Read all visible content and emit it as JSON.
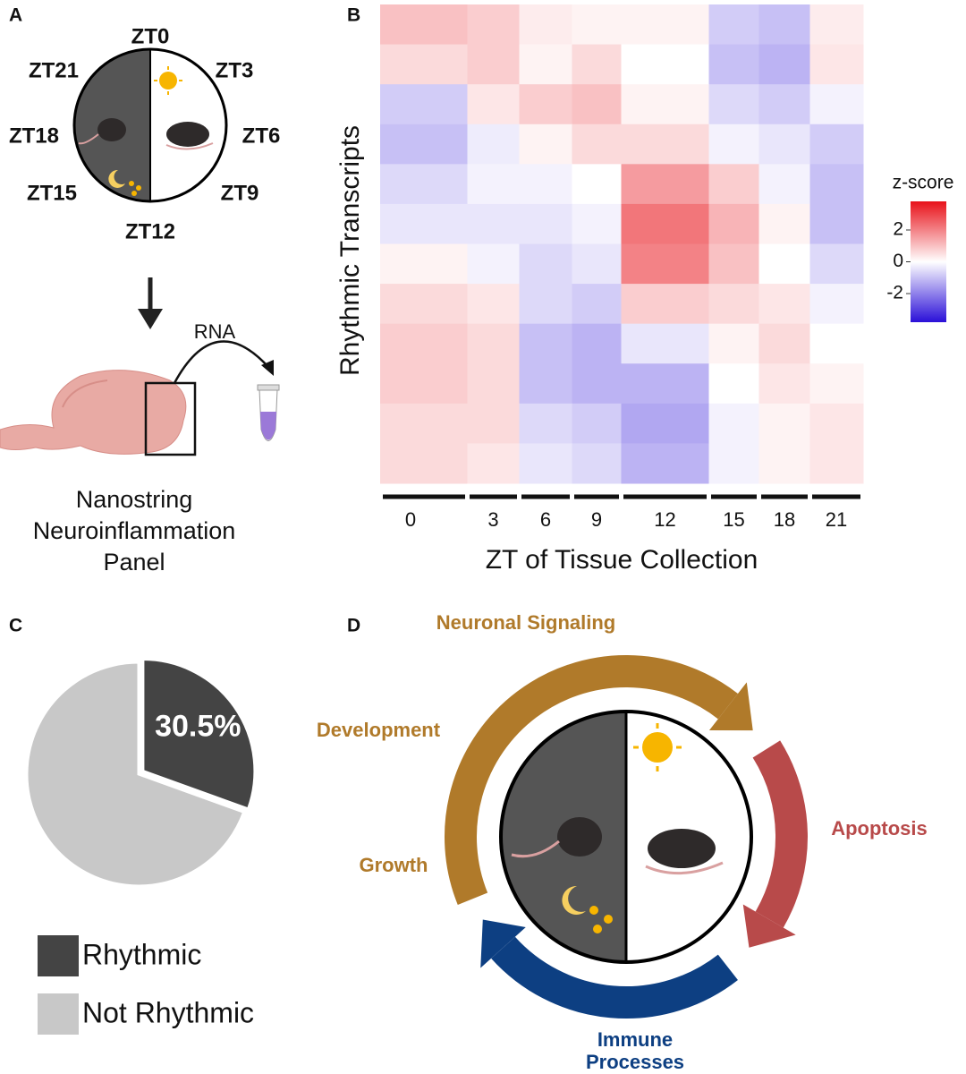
{
  "panel_a": {
    "letter": "A",
    "clock_labels": [
      "ZT0",
      "ZT3",
      "ZT6",
      "ZT9",
      "ZT12",
      "ZT15",
      "ZT18",
      "ZT21"
    ],
    "rna_label": "RNA",
    "caption": [
      "Nanostring",
      "Neuroinflammation",
      "Panel"
    ]
  },
  "chart_data": [
    {
      "type": "heatmap",
      "letter": "B",
      "x_label": "ZT of Tissue Collection",
      "y_label": "Rhythmic Transcripts",
      "categories": [
        "0",
        "3",
        "6",
        "9",
        "12",
        "15",
        "18",
        "21"
      ],
      "values": [
        [
          1.0,
          0.8,
          0.3,
          0.2,
          0.2,
          -0.8,
          -1.0,
          0.3
        ],
        [
          0.6,
          0.8,
          0.2,
          0.6,
          0.0,
          -1.0,
          -1.2,
          0.4
        ],
        [
          -0.8,
          0.4,
          0.8,
          1.0,
          0.2,
          -0.6,
          -0.8,
          -0.2
        ],
        [
          -1.0,
          -0.3,
          0.2,
          0.6,
          0.6,
          -0.2,
          -0.4,
          -0.8
        ],
        [
          -0.6,
          -0.2,
          -0.2,
          0.0,
          1.6,
          0.8,
          -0.2,
          -1.0
        ],
        [
          -0.4,
          -0.4,
          -0.4,
          -0.2,
          2.2,
          1.2,
          0.2,
          -1.0
        ],
        [
          0.2,
          -0.2,
          -0.6,
          -0.4,
          2.0,
          1.0,
          0.0,
          -0.6
        ],
        [
          0.6,
          0.4,
          -0.6,
          -0.8,
          0.8,
          0.6,
          0.4,
          -0.2
        ],
        [
          0.8,
          0.6,
          -1.0,
          -1.2,
          -0.4,
          0.2,
          0.6,
          0.0
        ],
        [
          0.8,
          0.6,
          -1.0,
          -1.2,
          -1.2,
          0.0,
          0.4,
          0.2
        ],
        [
          0.6,
          0.6,
          -0.6,
          -0.8,
          -1.4,
          -0.2,
          0.2,
          0.4
        ],
        [
          0.6,
          0.4,
          -0.4,
          -0.6,
          -1.2,
          -0.2,
          0.2,
          0.4
        ]
      ],
      "colorbar_title": "z-score",
      "zlim": [
        -3.8,
        3.8
      ],
      "zticks": [
        2,
        0,
        -2
      ],
      "colors": [
        "#2a0fd8",
        "#ffffff",
        "#e8121a"
      ]
    },
    {
      "type": "pie",
      "letter": "C",
      "categories": [
        "Rhythmic",
        "Not Rhythmic"
      ],
      "values": [
        30.5,
        69.5
      ],
      "value_labels": [
        "30.5%",
        null
      ],
      "colors": [
        "#444444",
        "#c8c8c8"
      ]
    }
  ],
  "panel_d": {
    "letter": "D",
    "labels": [
      "Neuronal Signaling",
      "Development",
      "Growth",
      "Apoptosis",
      "Immune",
      "Processes"
    ]
  }
}
